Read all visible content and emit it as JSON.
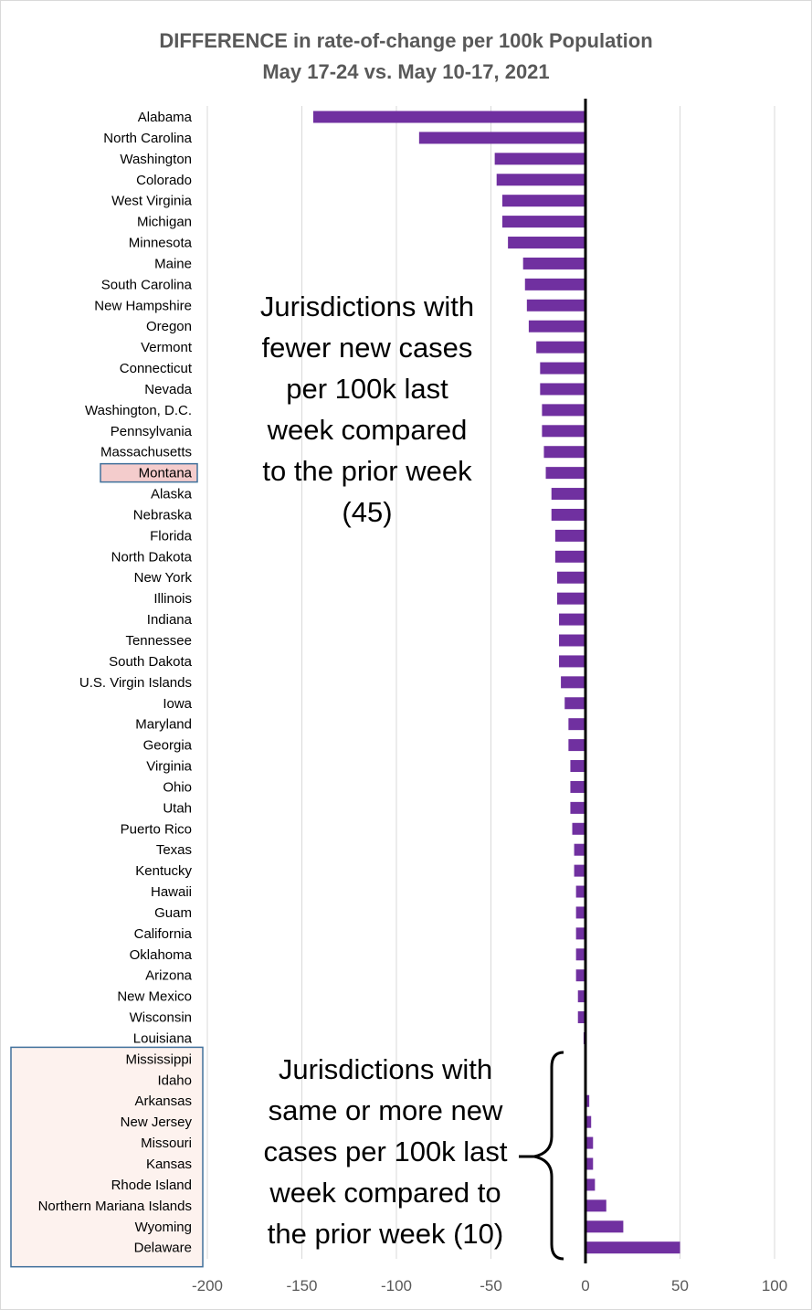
{
  "chart_data": {
    "type": "bar",
    "orientation": "horizontal",
    "title": "DIFFERENCE in rate-of-change per 100k Population",
    "subtitle": "May 17-24 vs. May 10-17, 2021",
    "xlabel": "",
    "ylabel": "",
    "xlim": [
      -200,
      100
    ],
    "xticks": [
      -200,
      -150,
      -100,
      -50,
      0,
      50,
      100
    ],
    "grid": true,
    "legend": "none",
    "bar_color": "#7030a0",
    "highlight_color": "#f4cccc",
    "group_color": "#fdf2ee",
    "box_border_color": "#41719c",
    "highlight_category": "Montana",
    "categories": [
      "Alabama",
      "North Carolina",
      "Washington",
      "Colorado",
      "West Virginia",
      "Michigan",
      "Minnesota",
      "Maine",
      "South Carolina",
      "New Hampshire",
      "Oregon",
      "Vermont",
      "Connecticut",
      "Nevada",
      "Washington, D.C.",
      "Pennsylvania",
      "Massachusetts",
      "Montana",
      "Alaska",
      "Nebraska",
      "Florida",
      "North Dakota",
      "New York",
      "Illinois",
      "Indiana",
      "Tennessee",
      "South Dakota",
      "U.S. Virgin Islands",
      "Iowa",
      "Maryland",
      "Georgia",
      "Virginia",
      "Ohio",
      "Utah",
      "Puerto Rico",
      "Texas",
      "Kentucky",
      "Hawaii",
      "Guam",
      "California",
      "Oklahoma",
      "Arizona",
      "New Mexico",
      "Wisconsin",
      "Louisiana",
      "Mississippi",
      "Idaho",
      "Arkansas",
      "New Jersey",
      "Missouri",
      "Kansas",
      "Rhode Island",
      "Northern Mariana Islands",
      "Wyoming",
      "Delaware"
    ],
    "values": [
      -144,
      -88,
      -48,
      -47,
      -44,
      -44,
      -41,
      -33,
      -32,
      -31,
      -30,
      -26,
      -24,
      -24,
      -23,
      -23,
      -22,
      -21,
      -18,
      -18,
      -16,
      -16,
      -15,
      -15,
      -14,
      -14,
      -14,
      -13,
      -11,
      -9,
      -9,
      -8,
      -8,
      -8,
      -7,
      -6,
      -6,
      -5,
      -5,
      -5,
      -5,
      -5,
      -4,
      -4,
      -1,
      0.5,
      0.5,
      2,
      3,
      4,
      4,
      5,
      11,
      20,
      50
    ],
    "annotations": [
      {
        "lines": [
          "Jurisdictions with",
          "fewer new cases",
          "per 100k last",
          "week compared",
          "to the prior week",
          "(45)"
        ]
      },
      {
        "lines": [
          "Jurisdictions with",
          "same or more new",
          "cases per 100k last",
          "week compared to",
          "the prior week (10)"
        ]
      }
    ]
  }
}
